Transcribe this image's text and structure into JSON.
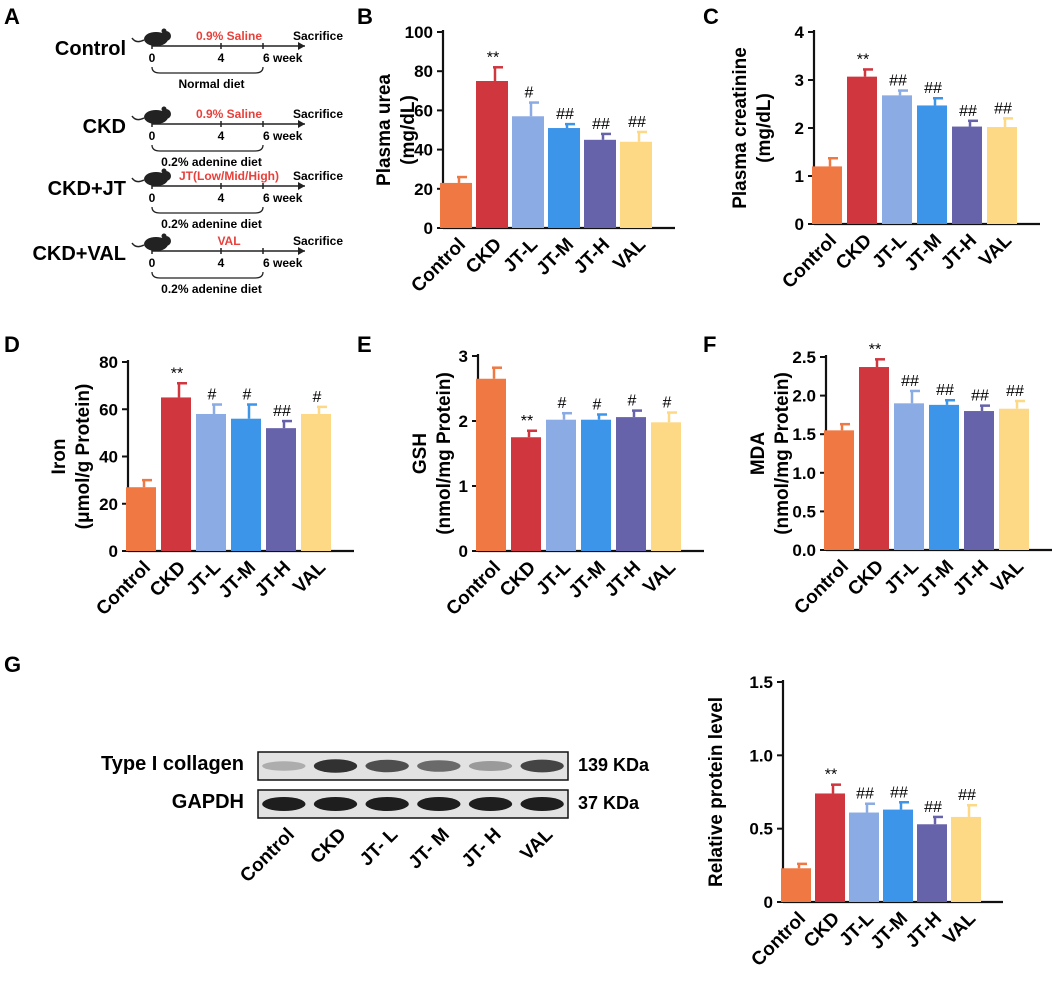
{
  "panel_letters": {
    "A": "A",
    "B": "B",
    "C": "C",
    "D": "D",
    "E": "E",
    "F": "F",
    "G": "G"
  },
  "groups_colors": [
    "#f07843",
    "#d0363e",
    "#8aabe3",
    "#3d95ea",
    "#6763ab",
    "#fdd985"
  ],
  "schematic": {
    "timeline_ticks": [
      "0",
      "4",
      "6 week"
    ],
    "sacrifice": "Sacrifice",
    "rows": [
      {
        "name": "Control",
        "treatment": "0.9% Saline",
        "diet": "Normal diet"
      },
      {
        "name": "CKD",
        "treatment": "0.9% Saline",
        "diet": "0.2% adenine diet"
      },
      {
        "name": "CKD+JT",
        "treatment": "JT(Low/Mid/High)",
        "diet": "0.2% adenine diet"
      },
      {
        "name": "CKD+VAL",
        "treatment": "VAL",
        "diet": "0.2% adenine diet"
      }
    ]
  },
  "chart_data": [
    {
      "id": "B",
      "type": "bar",
      "title": "",
      "ylabel": [
        "Plasma urea",
        "(mg/dL)"
      ],
      "categories": [
        "Control",
        "CKD",
        "JT-L",
        "JT-M",
        "JT-H",
        "VAL"
      ],
      "values": [
        23,
        75,
        57,
        51,
        45,
        44
      ],
      "errors": [
        3,
        7,
        7,
        2,
        3,
        5
      ],
      "annotations": [
        "",
        "**",
        "#",
        "##",
        "##",
        "##"
      ],
      "ylim": [
        0,
        100
      ],
      "yticks": [
        "0",
        "20",
        "40",
        "60",
        "80",
        "100"
      ]
    },
    {
      "id": "C",
      "type": "bar",
      "title": "",
      "ylabel": [
        "Plasma creatinine",
        "(mg/dL)"
      ],
      "categories": [
        "Control",
        "CKD",
        "JT-L",
        "JT-M",
        "JT-H",
        "VAL"
      ],
      "values": [
        1.2,
        3.07,
        2.68,
        2.47,
        2.03,
        2.02
      ],
      "errors": [
        0.17,
        0.15,
        0.1,
        0.15,
        0.12,
        0.18
      ],
      "annotations": [
        "",
        "**",
        "##",
        "##",
        "##",
        "##"
      ],
      "ylim": [
        0,
        4
      ],
      "yticks": [
        "0",
        "1",
        "2",
        "3",
        "4"
      ]
    },
    {
      "id": "D",
      "type": "bar",
      "title": "",
      "ylabel": [
        "Iron",
        "(μmol/g Protein)"
      ],
      "categories": [
        "Control",
        "CKD",
        "JT-L",
        "JT-M",
        "JT-H",
        "VAL"
      ],
      "values": [
        27,
        65,
        58,
        56,
        52,
        58
      ],
      "errors": [
        3,
        6,
        4,
        6,
        3,
        3
      ],
      "annotations": [
        "",
        "**",
        "#",
        "#",
        "##",
        "#"
      ],
      "ylim": [
        0,
        80
      ],
      "yticks": [
        "0",
        "20",
        "40",
        "60",
        "80"
      ]
    },
    {
      "id": "E",
      "type": "bar",
      "title": "",
      "ylabel": [
        "GSH",
        "(nmol/mg Protein)"
      ],
      "categories": [
        "Control",
        "CKD",
        "JT-L",
        "JT-M",
        "JT-H",
        "VAL"
      ],
      "values": [
        2.65,
        1.75,
        2.02,
        2.02,
        2.06,
        1.98
      ],
      "errors": [
        0.17,
        0.1,
        0.1,
        0.08,
        0.1,
        0.15
      ],
      "annotations": [
        "",
        "**",
        "#",
        "#",
        "#",
        "#"
      ],
      "ylim": [
        0,
        3
      ],
      "yticks": [
        "0",
        "1",
        "2",
        "3"
      ]
    },
    {
      "id": "F",
      "type": "bar",
      "title": "",
      "ylabel": [
        "MDA",
        "(nmol/mg Protein)"
      ],
      "categories": [
        "Control",
        "CKD",
        "JT-L",
        "JT-M",
        "JT-H",
        "VAL"
      ],
      "values": [
        1.55,
        2.37,
        1.9,
        1.88,
        1.8,
        1.83
      ],
      "errors": [
        0.08,
        0.1,
        0.16,
        0.06,
        0.07,
        0.1
      ],
      "annotations": [
        "",
        "**",
        "##",
        "##",
        "##",
        "##"
      ],
      "ylim": [
        0,
        2.5
      ],
      "yticks": [
        "0.0",
        "0.5",
        "1.0",
        "1.5",
        "2.0",
        "2.5"
      ]
    },
    {
      "id": "G",
      "type": "bar",
      "title": "",
      "ylabel": [
        "Relative protein level"
      ],
      "categories": [
        "Control",
        "CKD",
        "JT-L",
        "JT-M",
        "JT-H",
        "VAL"
      ],
      "values": [
        0.23,
        0.74,
        0.61,
        0.63,
        0.53,
        0.58
      ],
      "errors": [
        0.03,
        0.06,
        0.06,
        0.05,
        0.05,
        0.08
      ],
      "annotations": [
        "",
        "**",
        "##",
        "##",
        "##",
        "##"
      ],
      "ylim": [
        0,
        1.5
      ],
      "yticks": [
        "0",
        "0.5",
        "1.0",
        "1.5"
      ]
    }
  ],
  "western_blot": {
    "rows": [
      {
        "label": "Type I collagen",
        "kda": "139 KDa",
        "intensities": [
          0.25,
          0.9,
          0.75,
          0.6,
          0.35,
          0.8
        ]
      },
      {
        "label": "GAPDH",
        "kda": "37 KDa",
        "intensities": [
          1,
          1,
          1,
          1,
          1,
          1
        ]
      }
    ],
    "lanes": [
      "Control",
      "CKD",
      "JT- L",
      "JT- M",
      "JT- H",
      "VAL"
    ]
  }
}
